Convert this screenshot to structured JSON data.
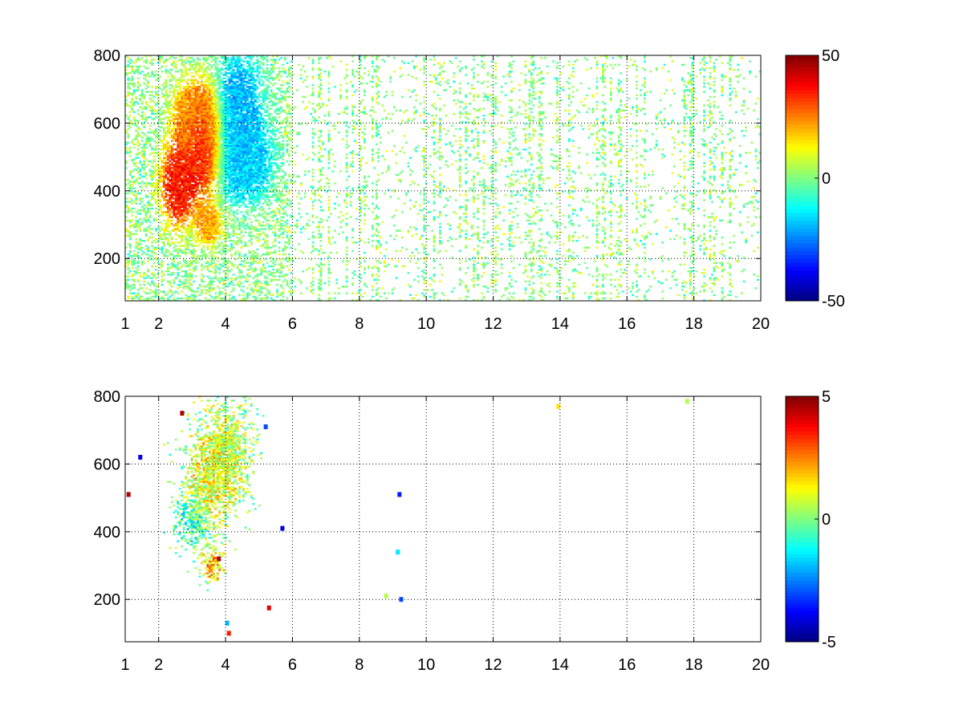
{
  "figure": {
    "background": "#ffffff"
  },
  "chart_data": [
    {
      "type": "heatmap",
      "title": "",
      "xlabel": "",
      "ylabel": "",
      "xlim": [
        1,
        20
      ],
      "ylim": [
        75,
        800
      ],
      "xticks": [
        1,
        2,
        4,
        6,
        8,
        10,
        12,
        14,
        16,
        18,
        20
      ],
      "xtick_labels": [
        "1",
        "2",
        "4",
        "6",
        "8",
        "10",
        "12",
        "14",
        "16",
        "18",
        "20"
      ],
      "yticks": [
        200,
        400,
        600,
        800
      ],
      "ytick_labels": [
        "200",
        "400",
        "600",
        "800"
      ],
      "grid": true,
      "colormap": "jet",
      "clim": [
        -50,
        50
      ],
      "colorbar_ticks": [
        -50,
        0,
        50
      ],
      "colorbar_labels": [
        "-50",
        "0",
        "50"
      ],
      "description": "sparse speckled field; dense warm (positive) cluster near x 2.3-4, y 350-650; cooler values near x 4-5.5; scattered weak values elsewhere",
      "hotspots": [
        {
          "x": 2.6,
          "y": 420,
          "value": 35,
          "sx": 0.35,
          "sy": 80
        },
        {
          "x": 3.4,
          "y": 540,
          "value": 38,
          "sx": 0.3,
          "sy": 90
        },
        {
          "x": 3.0,
          "y": 620,
          "value": 22,
          "sx": 0.4,
          "sy": 70
        },
        {
          "x": 3.5,
          "y": 300,
          "value": 20,
          "sx": 0.25,
          "sy": 40
        },
        {
          "x": 4.4,
          "y": 620,
          "value": -20,
          "sx": 0.45,
          "sy": 120
        },
        {
          "x": 4.6,
          "y": 480,
          "value": -16,
          "sx": 0.5,
          "sy": 70
        }
      ]
    },
    {
      "type": "heatmap",
      "title": "",
      "xlabel": "",
      "ylabel": "",
      "xlim": [
        1,
        20
      ],
      "ylim": [
        75,
        800
      ],
      "xticks": [
        1,
        2,
        4,
        6,
        8,
        10,
        12,
        14,
        16,
        18,
        20
      ],
      "xtick_labels": [
        "1",
        "2",
        "4",
        "6",
        "8",
        "10",
        "12",
        "14",
        "16",
        "18",
        "20"
      ],
      "yticks": [
        200,
        400,
        600,
        800
      ],
      "ytick_labels": [
        "200",
        "400",
        "600",
        "800"
      ],
      "grid": true,
      "colormap": "jet",
      "clim": [
        -5,
        5
      ],
      "colorbar_ticks": [
        -5,
        0,
        5
      ],
      "colorbar_labels": [
        "-5",
        "0",
        "5"
      ],
      "description": "mostly empty; cluster of small values near x 2.5-4.8, y 380-780; a few isolated points elsewhere",
      "hotspots": [
        {
          "x": 3.5,
          "y": 560,
          "value": 1.2,
          "sx": 0.45,
          "sy": 90
        },
        {
          "x": 3.0,
          "y": 430,
          "value": -1.0,
          "sx": 0.3,
          "sy": 50
        },
        {
          "x": 4.1,
          "y": 650,
          "value": 0.6,
          "sx": 0.4,
          "sy": 90
        },
        {
          "x": 3.6,
          "y": 300,
          "value": 1.8,
          "sx": 0.2,
          "sy": 30
        }
      ],
      "isolated_points": [
        {
          "x": 13.95,
          "y": 770,
          "value": 1.5
        },
        {
          "x": 17.8,
          "y": 785,
          "value": 0.5
        },
        {
          "x": 9.2,
          "y": 510,
          "value": -3.5
        },
        {
          "x": 9.15,
          "y": 340,
          "value": -1.5
        },
        {
          "x": 9.25,
          "y": 200,
          "value": -3.0
        },
        {
          "x": 8.8,
          "y": 210,
          "value": 0.5
        },
        {
          "x": 5.7,
          "y": 410,
          "value": -4.0
        },
        {
          "x": 5.2,
          "y": 710,
          "value": -3.0
        },
        {
          "x": 1.45,
          "y": 620,
          "value": -4.0
        },
        {
          "x": 1.1,
          "y": 510,
          "value": 4.5
        },
        {
          "x": 3.8,
          "y": 320,
          "value": 4.5
        },
        {
          "x": 4.1,
          "y": 100,
          "value": 3.5
        },
        {
          "x": 4.05,
          "y": 130,
          "value": -2.0
        },
        {
          "x": 2.7,
          "y": 750,
          "value": 4.5
        },
        {
          "x": 5.3,
          "y": 175,
          "value": 4.0
        }
      ]
    }
  ]
}
